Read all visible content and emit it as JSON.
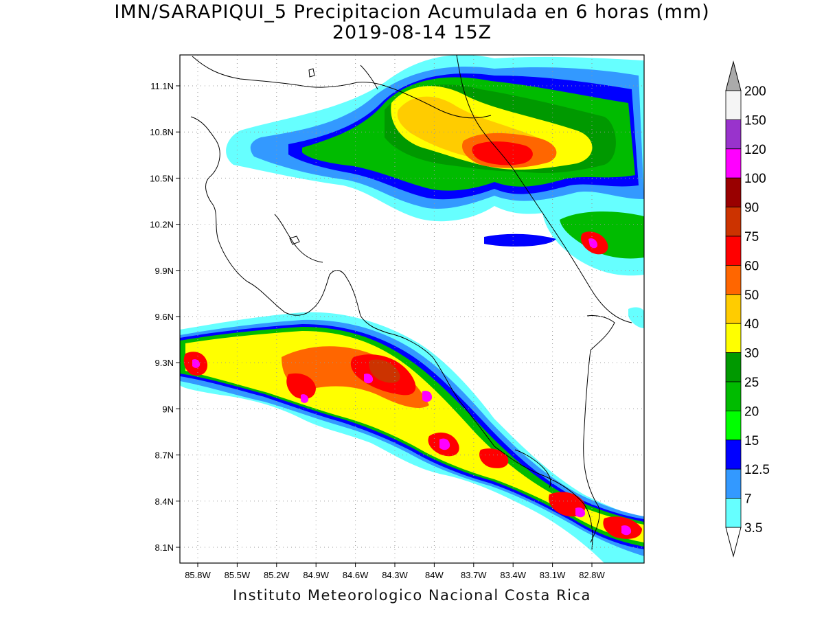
{
  "title": {
    "line1": "IMN/SARAPIQUI_5 Precipitacion Acumulada en 6 horas (mm)",
    "line2": "2019-08-14 15Z"
  },
  "footer": "Instituto Meteorologico Nacional Costa Rica",
  "map": {
    "lat_labels": [
      "11.1N",
      "10.8N",
      "10.5N",
      "10.2N",
      "9.9N",
      "9.6N",
      "9.3N",
      "9N",
      "8.7N",
      "8.4N",
      "8.1N"
    ],
    "lon_labels": [
      "85.8W",
      "85.5W",
      "85.2W",
      "84.9W",
      "84.6W",
      "84.3W",
      "84W",
      "83.7W",
      "83.4W",
      "83.1W",
      "82.8W"
    ],
    "grid": true
  },
  "colorbar": {
    "labels": [
      "200",
      "150",
      "120",
      "100",
      "90",
      "75",
      "60",
      "50",
      "40",
      "30",
      "25",
      "20",
      "15",
      "12.5",
      "7",
      "3.5"
    ],
    "colors": [
      "#f5f5f5",
      "#9933cc",
      "#ff00ff",
      "#990000",
      "#cc3300",
      "#ff0000",
      "#ff6600",
      "#ffcc00",
      "#ffff00",
      "#009900",
      "#00bb00",
      "#00ff00",
      "#0000ff",
      "#3399ff",
      "#66ffff"
    ],
    "upper_arrow_color": "#aaaaaa",
    "lower_arrow_color": "#ffffff"
  }
}
